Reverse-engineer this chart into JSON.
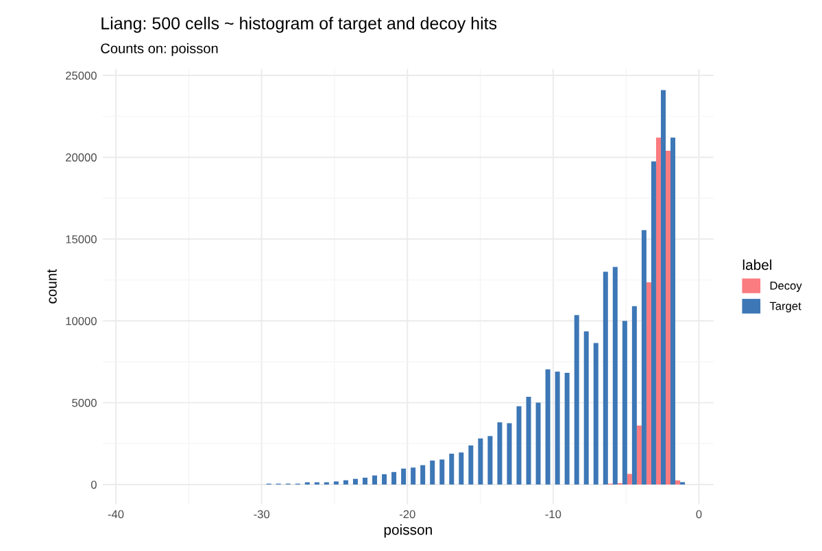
{
  "chart_data": {
    "type": "histogram",
    "title": "Liang: 500 cells ~ histogram of target and decoy hits",
    "subtitle": "Counts on: poisson",
    "xlabel": "poisson",
    "ylabel": "count",
    "legend_title": "label",
    "bins": [
      -30.0,
      -29.34,
      -28.68,
      -28.02,
      -27.36,
      -26.7,
      -26.04,
      -25.38,
      -24.72,
      -24.06,
      -23.4,
      -22.74,
      -22.08,
      -21.42,
      -20.76,
      -20.1,
      -19.44,
      -18.78,
      -18.12,
      -17.46,
      -16.8,
      -16.14,
      -15.48,
      -14.82,
      -14.16,
      -13.5,
      -12.84,
      -12.18,
      -11.52,
      -10.86,
      -10.2,
      -9.54,
      -8.88,
      -8.22,
      -7.56,
      -6.9,
      -6.24,
      -5.58,
      -4.92,
      -4.26,
      -3.6,
      -2.94,
      -2.28,
      -1.62,
      -0.96
    ],
    "series": [
      {
        "name": "Decoy",
        "color": "#fa7b80",
        "values": [
          0,
          0,
          0,
          0,
          0,
          0,
          0,
          0,
          0,
          0,
          0,
          0,
          0,
          0,
          0,
          0,
          0,
          0,
          0,
          0,
          0,
          0,
          0,
          0,
          0,
          0,
          0,
          0,
          0,
          0,
          0,
          0,
          0,
          0,
          0,
          0,
          50,
          80,
          650,
          3600,
          12350,
          21200,
          20400,
          250
        ]
      },
      {
        "name": "Target",
        "color": "#3d77b6",
        "values": [
          50,
          50,
          50,
          50,
          140,
          140,
          140,
          190,
          260,
          350,
          420,
          560,
          625,
          760,
          970,
          1040,
          1180,
          1470,
          1530,
          1890,
          1960,
          2390,
          2820,
          2960,
          3800,
          3750,
          4780,
          5360,
          5000,
          7040,
          6900,
          6830,
          10360,
          9360,
          8650,
          13000,
          13300,
          10000,
          10900,
          15550,
          19750,
          24100,
          21200,
          150
        ]
      }
    ],
    "xlim": [
      -40.9,
      1.0
    ],
    "xticks": [
      -40,
      -30,
      -20,
      -10,
      0
    ],
    "ylim": [
      -1200,
      25400
    ],
    "yticks": [
      0,
      5000,
      10000,
      15000,
      20000,
      25000
    ],
    "grid": true,
    "legend": "right"
  }
}
